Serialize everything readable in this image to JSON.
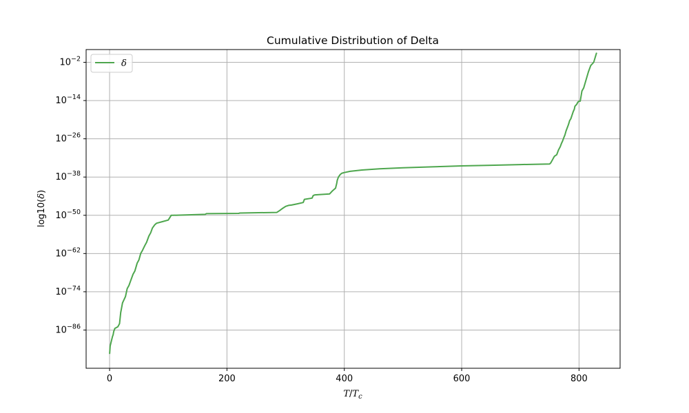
{
  "chart_data": {
    "type": "line",
    "title": "Cumulative Distribution of Delta",
    "xlabel": {
      "main": "T",
      "sep": "/",
      "base": "T",
      "sub": "c"
    },
    "ylabel": {
      "main": "log10(",
      "var": "δ",
      "close": ")"
    },
    "xlim": [
      -40,
      870
    ],
    "ylim_exp": [
      -98,
      2
    ],
    "x_ticks": [
      0,
      200,
      400,
      600,
      800
    ],
    "y_tick_exponents": [
      -86,
      -74,
      -62,
      -50,
      -38,
      -26,
      -14,
      -2
    ],
    "y_tick_base": "10",
    "y_scale": "log",
    "grid": true,
    "legend_position": "upper-left",
    "series": [
      {
        "name": "δ",
        "color": "#4da64d",
        "x": [
          0,
          1,
          3,
          5,
          6,
          7,
          9,
          14,
          17,
          19,
          20,
          22,
          24,
          27,
          30,
          33,
          36,
          40,
          43,
          47,
          50,
          53,
          56,
          60,
          63,
          67,
          70,
          73,
          77,
          80,
          90,
          100,
          105,
          108,
          163,
          165,
          220,
          222,
          285,
          290,
          295,
          300,
          305,
          310,
          320,
          330,
          332,
          345,
          347,
          350,
          375,
          380,
          385,
          387,
          388,
          390,
          393,
          396,
          400,
          410,
          430,
          460,
          500,
          550,
          600,
          650,
          700,
          750,
          752,
          755,
          758,
          762,
          765,
          768,
          770,
          772,
          774,
          776,
          778,
          780,
          782,
          784,
          786,
          788,
          790,
          792,
          793,
          796,
          798,
          800,
          802,
          805,
          808,
          812,
          816,
          820,
          825,
          830
        ],
        "y_exp": [
          -93.5,
          -91,
          -89.5,
          -88,
          -87.5,
          -86.5,
          -85.5,
          -85,
          -84,
          -80.5,
          -79.5,
          -77.5,
          -76.7,
          -75.5,
          -73,
          -72,
          -70.5,
          -68.5,
          -67.5,
          -65,
          -64,
          -62,
          -61,
          -59.5,
          -58.5,
          -56.5,
          -55.5,
          -54,
          -53,
          -52.5,
          -52,
          -51.5,
          -50,
          -50,
          -49.7,
          -49.5,
          -49.4,
          -49.3,
          -49.1,
          -48.5,
          -47.8,
          -47.2,
          -46.9,
          -46.8,
          -46.4,
          -46,
          -45,
          -44.6,
          -43.8,
          -43.6,
          -43.3,
          -42.3,
          -41.5,
          -40,
          -39,
          -38,
          -37.2,
          -36.8,
          -36.6,
          -36.2,
          -35.8,
          -35.4,
          -35.1,
          -34.8,
          -34.5,
          -34.3,
          -34.1,
          -33.9,
          -33.5,
          -32.5,
          -31.5,
          -31,
          -29.5,
          -28.5,
          -27.5,
          -26.7,
          -25.7,
          -24.8,
          -23.5,
          -22.5,
          -21.5,
          -20.3,
          -19.7,
          -18.6,
          -17.5,
          -16.7,
          -15.8,
          -15.2,
          -14.5,
          -14.2,
          -14.2,
          -11,
          -10,
          -7.5,
          -5,
          -3,
          -2,
          1
        ]
      }
    ]
  }
}
